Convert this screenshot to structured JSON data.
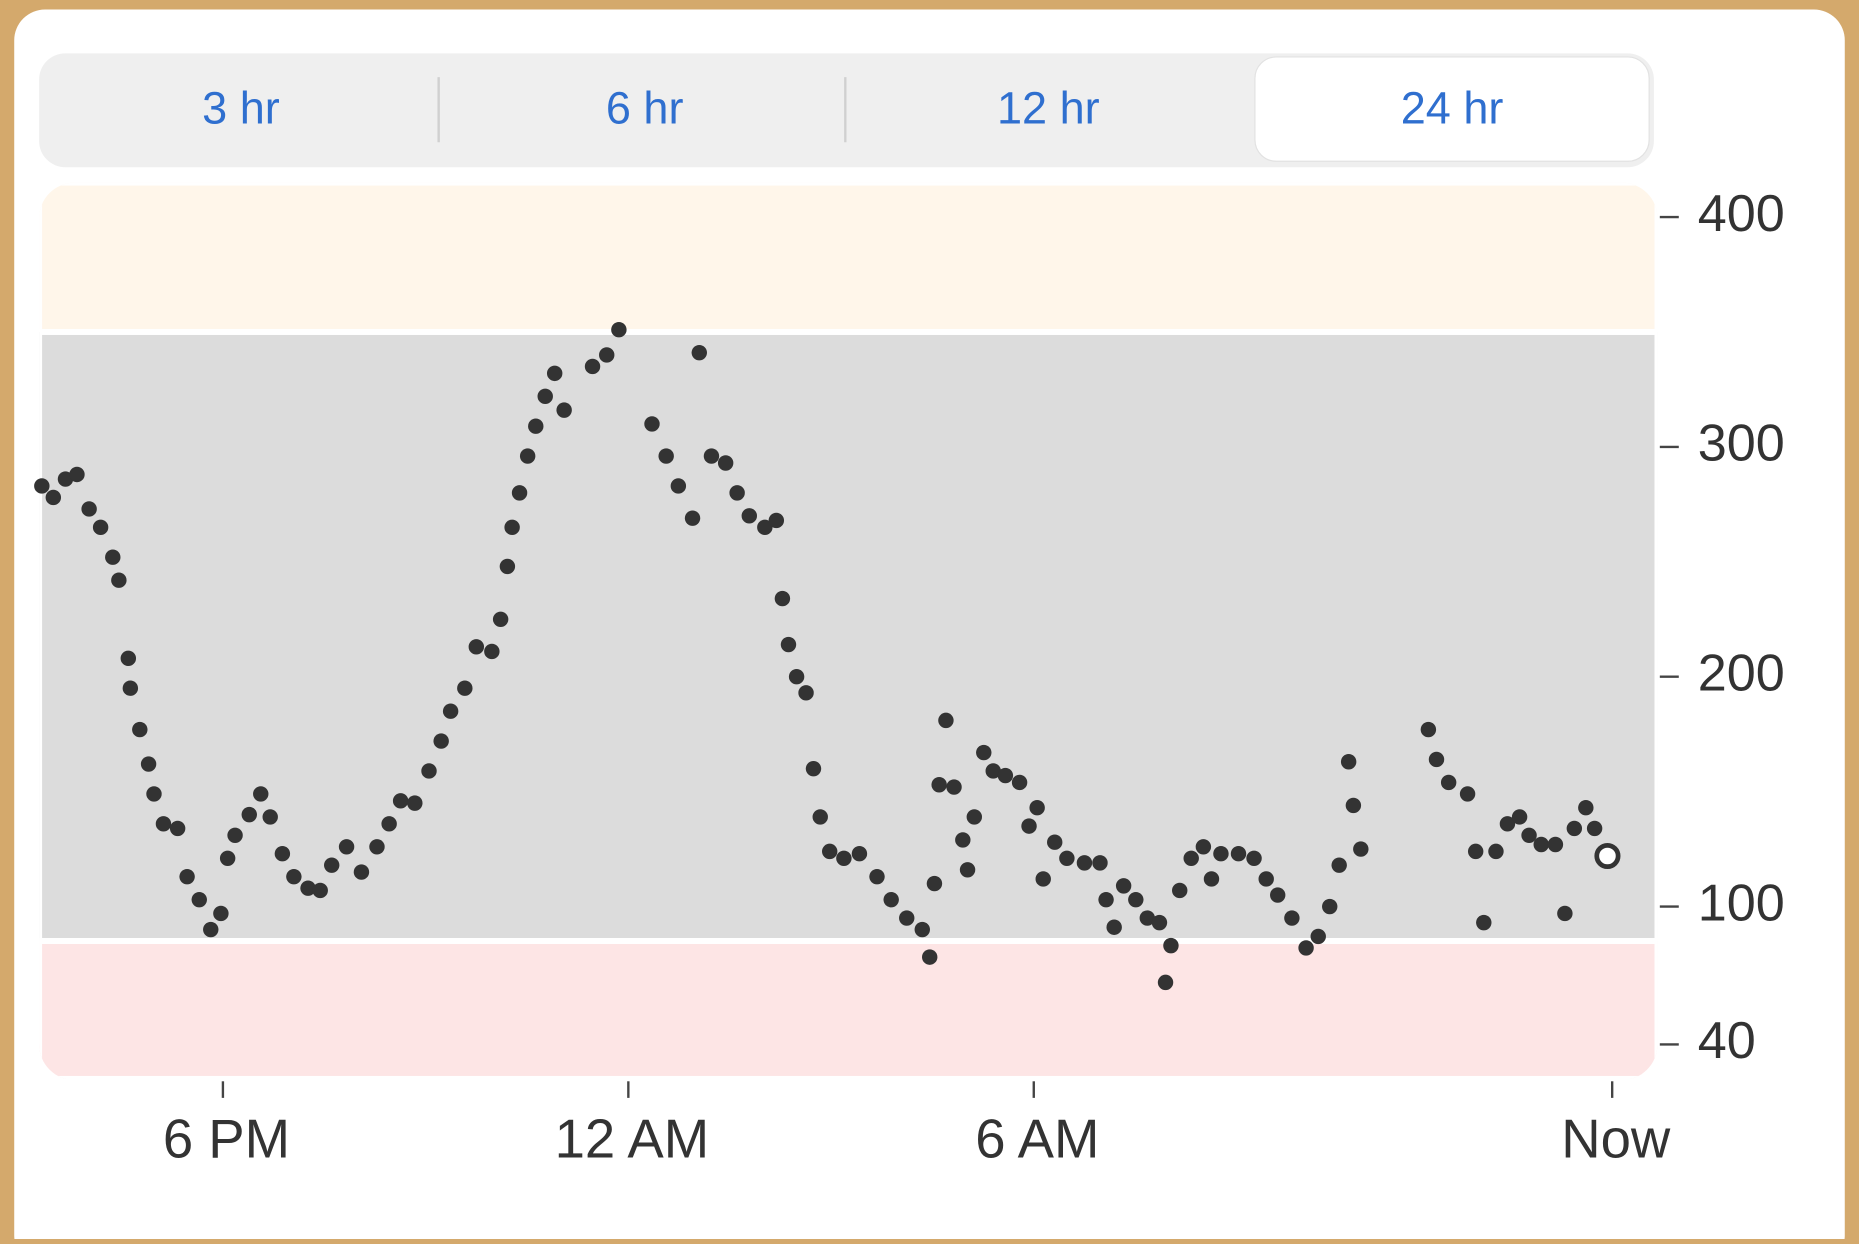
{
  "tabs": {
    "options": [
      "3 hr",
      "6 hr",
      "12 hr",
      "24 hr"
    ],
    "selected": 3
  },
  "chart_data": {
    "type": "scatter",
    "x": [
      -8.68,
      -8.51,
      -8.33,
      -8.16,
      -7.98,
      -7.81,
      -7.63,
      -7.54,
      -7.4,
      -7.37,
      -7.23,
      -7.1,
      -7.02,
      -6.88,
      -6.67,
      -6.53,
      -6.35,
      -6.18,
      -6.03,
      -5.93,
      -5.82,
      -5.61,
      -5.44,
      -5.3,
      -5.12,
      -4.95,
      -4.74,
      -4.56,
      -4.39,
      -4.17,
      -3.95,
      -3.72,
      -3.54,
      -3.37,
      -3.16,
      -2.95,
      -2.77,
      -2.63,
      -2.42,
      -2.25,
      -2.02,
      -1.89,
      -1.79,
      -1.72,
      -1.61,
      -1.49,
      -1.37,
      -1.23,
      -1.09,
      -0.95,
      -0.53,
      -0.32,
      -0.14,
      0.35,
      0.56,
      0.74,
      0.95,
      1.05,
      1.23,
      1.44,
      1.61,
      1.79,
      2.02,
      2.19,
      2.28,
      2.37,
      2.49,
      2.63,
      2.74,
      2.84,
      2.98,
      3.19,
      3.42,
      3.68,
      3.89,
      4.12,
      4.35,
      4.46,
      4.53,
      4.6,
      4.7,
      4.82,
      4.95,
      5.02,
      5.12,
      5.26,
      5.4,
      5.58,
      5.79,
      5.93,
      6.05,
      6.14,
      6.31,
      6.49,
      6.75,
      6.98,
      7.07,
      7.19,
      7.33,
      7.51,
      7.68,
      7.86,
      7.95,
      8.03,
      8.16,
      8.33,
      8.51,
      8.63,
      8.77,
      9.03,
      9.26,
      9.44,
      9.61,
      9.82,
      10.03,
      10.21,
      10.38,
      10.52,
      10.66,
      10.73,
      10.84,
      11.84,
      11.96,
      12.14,
      12.42,
      12.54,
      12.66,
      12.84,
      13.01,
      13.19,
      13.33,
      13.51,
      13.72,
      13.86,
      14.0,
      14.17,
      14.3,
      14.49
    ],
    "values": [
      283,
      278,
      286,
      288,
      273,
      265,
      252,
      242,
      208,
      195,
      177,
      162,
      149,
      136,
      134,
      113,
      103,
      90,
      97,
      121,
      131,
      140,
      149,
      139,
      123,
      113,
      108,
      107,
      118,
      126,
      115,
      126,
      136,
      146,
      145,
      159,
      172,
      185,
      195,
      213,
      211,
      225,
      248,
      265,
      280,
      296,
      309,
      322,
      332,
      316,
      335,
      340,
      351,
      310,
      296,
      283,
      269,
      341,
      296,
      293,
      280,
      270,
      265,
      268,
      234,
      214,
      200,
      193,
      160,
      139,
      124,
      121,
      123,
      113,
      103,
      95,
      90,
      78,
      110,
      153,
      181,
      152,
      129,
      116,
      139,
      167,
      159,
      157,
      154,
      135,
      143,
      112,
      128,
      121,
      119,
      119,
      103,
      91,
      109,
      103,
      95,
      93,
      67,
      83,
      107,
      121,
      126,
      112,
      123,
      123,
      121,
      112,
      105,
      95,
      82,
      87,
      100,
      118,
      163,
      144,
      125,
      177,
      164,
      154,
      149,
      124,
      93,
      124,
      136,
      139,
      131,
      127,
      127,
      97,
      134,
      143,
      134,
      122
    ],
    "color": "#333333",
    "xlim": [
      -8.72,
      15.23
    ],
    "xticks": [
      {
        "value": -6,
        "label": "6 PM"
      },
      {
        "value": 0,
        "label": "12 AM"
      },
      {
        "value": 6,
        "label": "6 AM"
      },
      {
        "value": 14.56,
        "label": "Now"
      }
    ],
    "ylim": [
      25,
      415
    ],
    "yticks": [
      40,
      100,
      200,
      300,
      400
    ],
    "bands": [
      {
        "from": 350,
        "to": 415,
        "color": "#fff6ea"
      },
      {
        "from": 85,
        "to": 350,
        "color": "#dcdcdc"
      },
      {
        "from": 25,
        "to": 85,
        "color": "#fde5e5"
      }
    ]
  }
}
